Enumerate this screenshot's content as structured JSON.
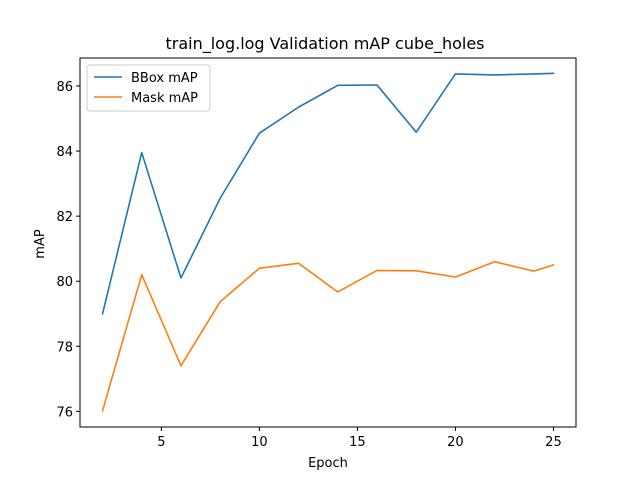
{
  "chart_data": {
    "type": "line",
    "title": "train_log.log Validation mAP cube_holes",
    "xlabel": "Epoch",
    "ylabel": "mAP",
    "x": [
      2,
      4,
      6,
      8,
      10,
      12,
      14,
      16,
      18,
      20,
      22,
      24,
      25
    ],
    "xlim": [
      0.85,
      26.15
    ],
    "ylim": [
      75.52,
      86.86
    ],
    "xticks": [
      5,
      10,
      15,
      20,
      25
    ],
    "yticks": [
      76,
      78,
      80,
      82,
      84,
      86
    ],
    "grid": false,
    "legend_position": "upper-left",
    "series": [
      {
        "name": "BBox mAP",
        "color": "#1f77b4",
        "values": [
          79.0,
          83.95,
          80.1,
          82.55,
          84.55,
          85.35,
          86.02,
          86.03,
          84.58,
          86.37,
          86.34,
          86.37,
          86.39
        ]
      },
      {
        "name": "Mask mAP",
        "color": "#ff7f0e",
        "values": [
          76.02,
          80.2,
          77.4,
          79.37,
          80.4,
          80.55,
          79.67,
          80.33,
          80.32,
          80.13,
          80.6,
          80.31,
          80.5
        ]
      }
    ]
  }
}
